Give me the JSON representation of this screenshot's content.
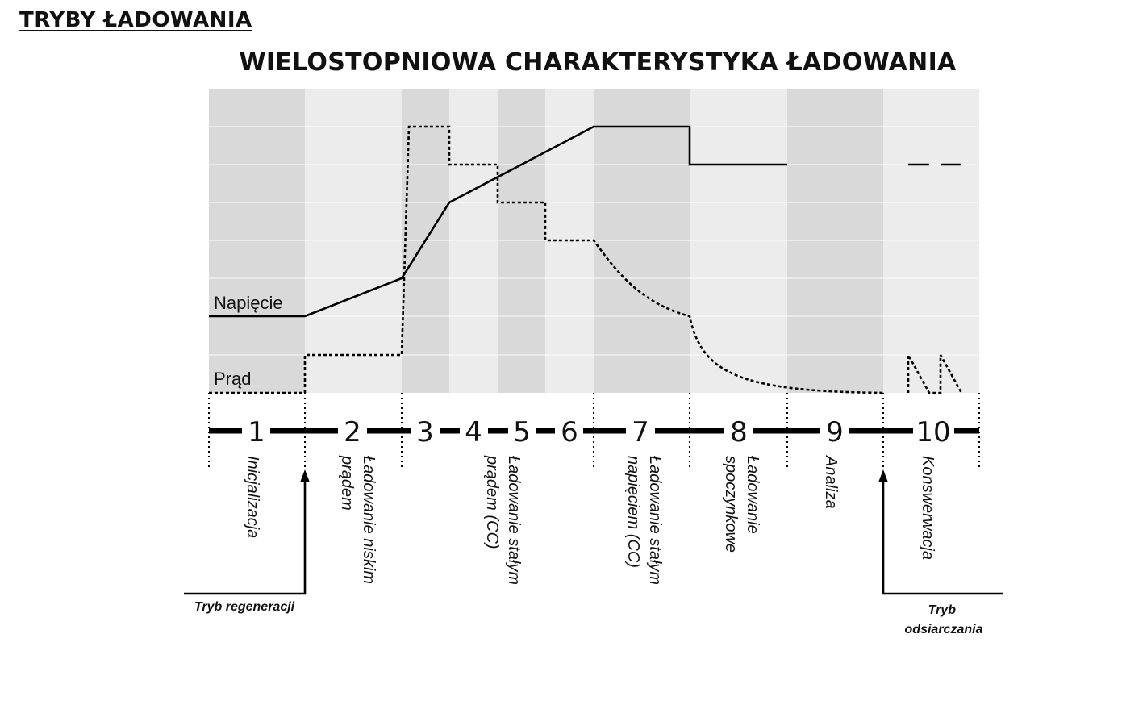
{
  "header": "TRYBY ŁADOWANIA",
  "title": "WIELOSTOPNIOWA CHARAKTERYSTYKA ŁADOWANIA",
  "labels": {
    "voltage": "Napięcie",
    "current": "Prąd"
  },
  "stages": [
    {
      "number": "1",
      "name": "Inicjalizacja"
    },
    {
      "number": "2",
      "name": "Ładowanie niskim prądem"
    },
    {
      "number": "3",
      "name": ""
    },
    {
      "number": "4",
      "name": ""
    },
    {
      "number": "5",
      "name": "Ładowanie stałym prądem (CC)"
    },
    {
      "number": "6",
      "name": ""
    },
    {
      "number": "7",
      "name": "Ładowanie stałym napięciem (CC)"
    },
    {
      "number": "8",
      "name": "Ładowanie spoczynkowe"
    },
    {
      "number": "9",
      "name": "Analiza"
    },
    {
      "number": "10",
      "name": "Konswerwacja"
    }
  ],
  "modes": {
    "regeneration": "Tryb regeneracji",
    "desulfation": "Tryb odsiarczania"
  },
  "colors": {
    "dark_band": "#d9d9d9",
    "light_band": "#ececec",
    "line": "#000000"
  }
}
